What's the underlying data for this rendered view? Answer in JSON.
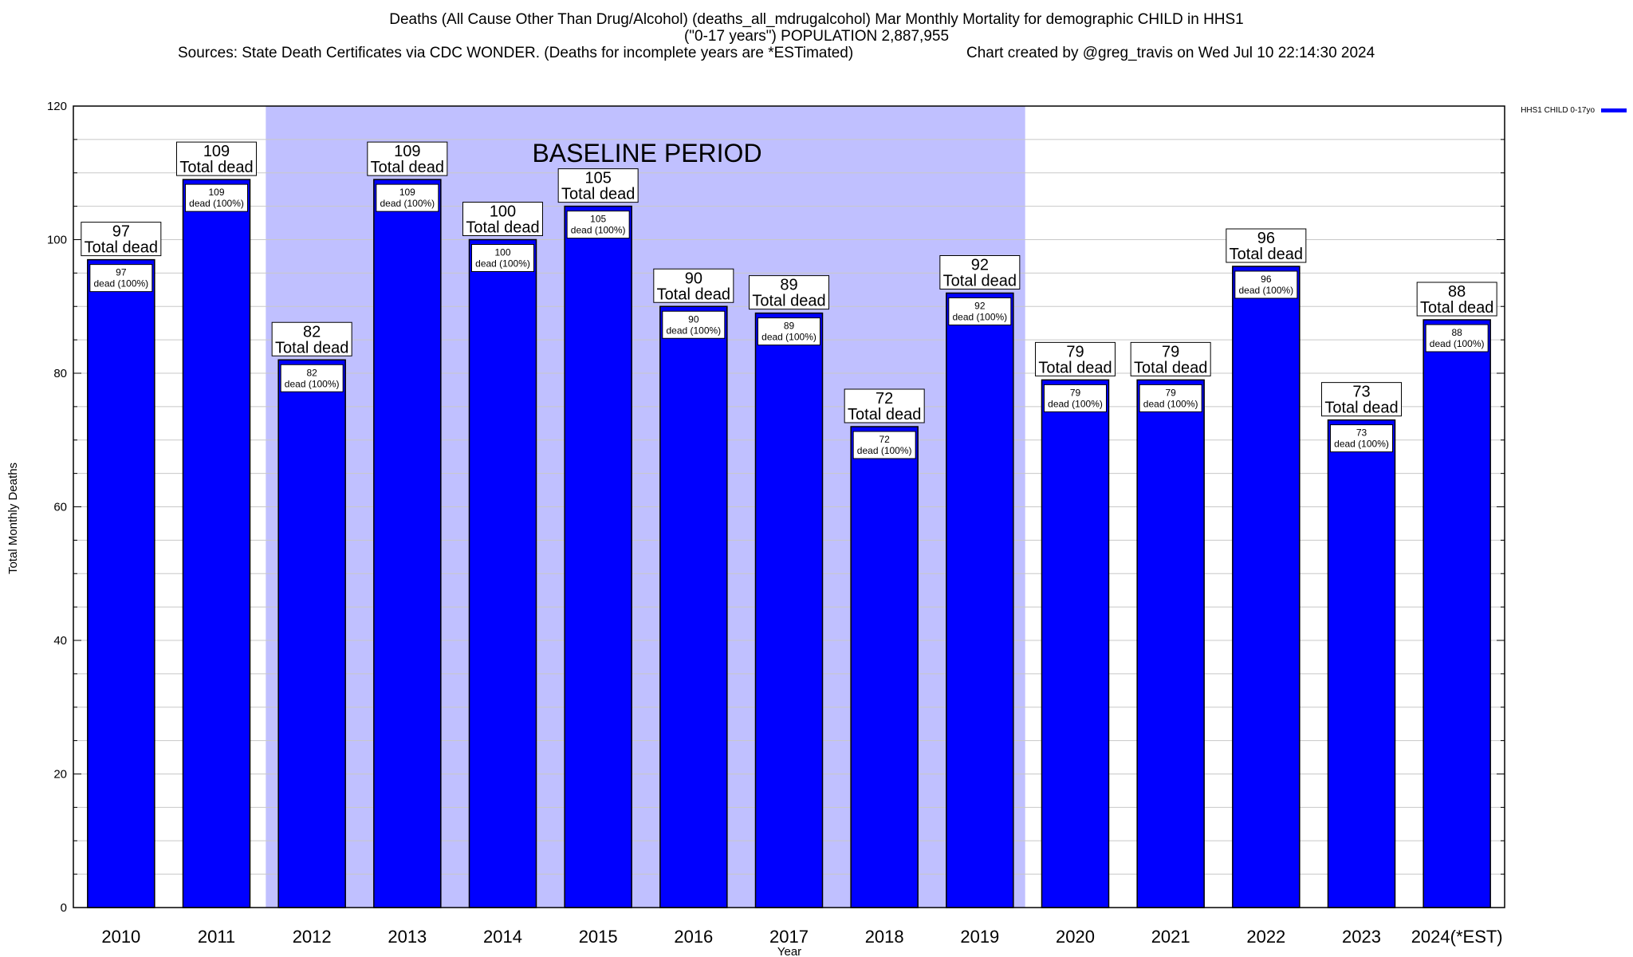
{
  "title": {
    "line1": "Deaths (All Cause Other Than Drug/Alcohol) (deaths_all_mdrugalcohol) Mar Monthly Mortality for demographic CHILD in HHS1",
    "line2": "(\"0-17 years\") POPULATION 2,887,955",
    "sources": "Sources: State Death Certificates via CDC WONDER. (Deaths for incomplete years are *ESTimated)",
    "credit": "Chart created by @greg_travis on Wed Jul 10 22:14:30 2024"
  },
  "colors": {
    "bar": "#0000ff",
    "baseline_shade": "#c0c0ff",
    "bar_outline": "#000000",
    "grid": "#c8c8c8"
  },
  "chart_data": {
    "type": "bar",
    "title": "Deaths (All Cause Other Than Drug/Alcohol) (deaths_all_mdrugalcohol) Mar Monthly Mortality for demographic CHILD in HHS1",
    "xlabel": "Year",
    "ylabel": "Total Monthly Deaths",
    "ylim": [
      0,
      120
    ],
    "yticks": [
      0,
      20,
      40,
      60,
      80,
      100,
      120
    ],
    "grid": true,
    "legend_position": "top-right",
    "categories": [
      "2010",
      "2011",
      "2012",
      "2013",
      "2014",
      "2015",
      "2016",
      "2017",
      "2018",
      "2019",
      "2020",
      "2021",
      "2022",
      "2023",
      "2024(*EST)"
    ],
    "series": [
      {
        "name": "HHS1 CHILD 0-17yo",
        "values": [
          97,
          109,
          82,
          109,
          100,
          105,
          90,
          89,
          72,
          92,
          79,
          79,
          96,
          73,
          88
        ]
      }
    ],
    "total_label": "Total dead",
    "inner_label": "dead (100%)",
    "annotation": {
      "text": "BASELINE PERIOD",
      "from": "2012",
      "to": "2019"
    }
  }
}
